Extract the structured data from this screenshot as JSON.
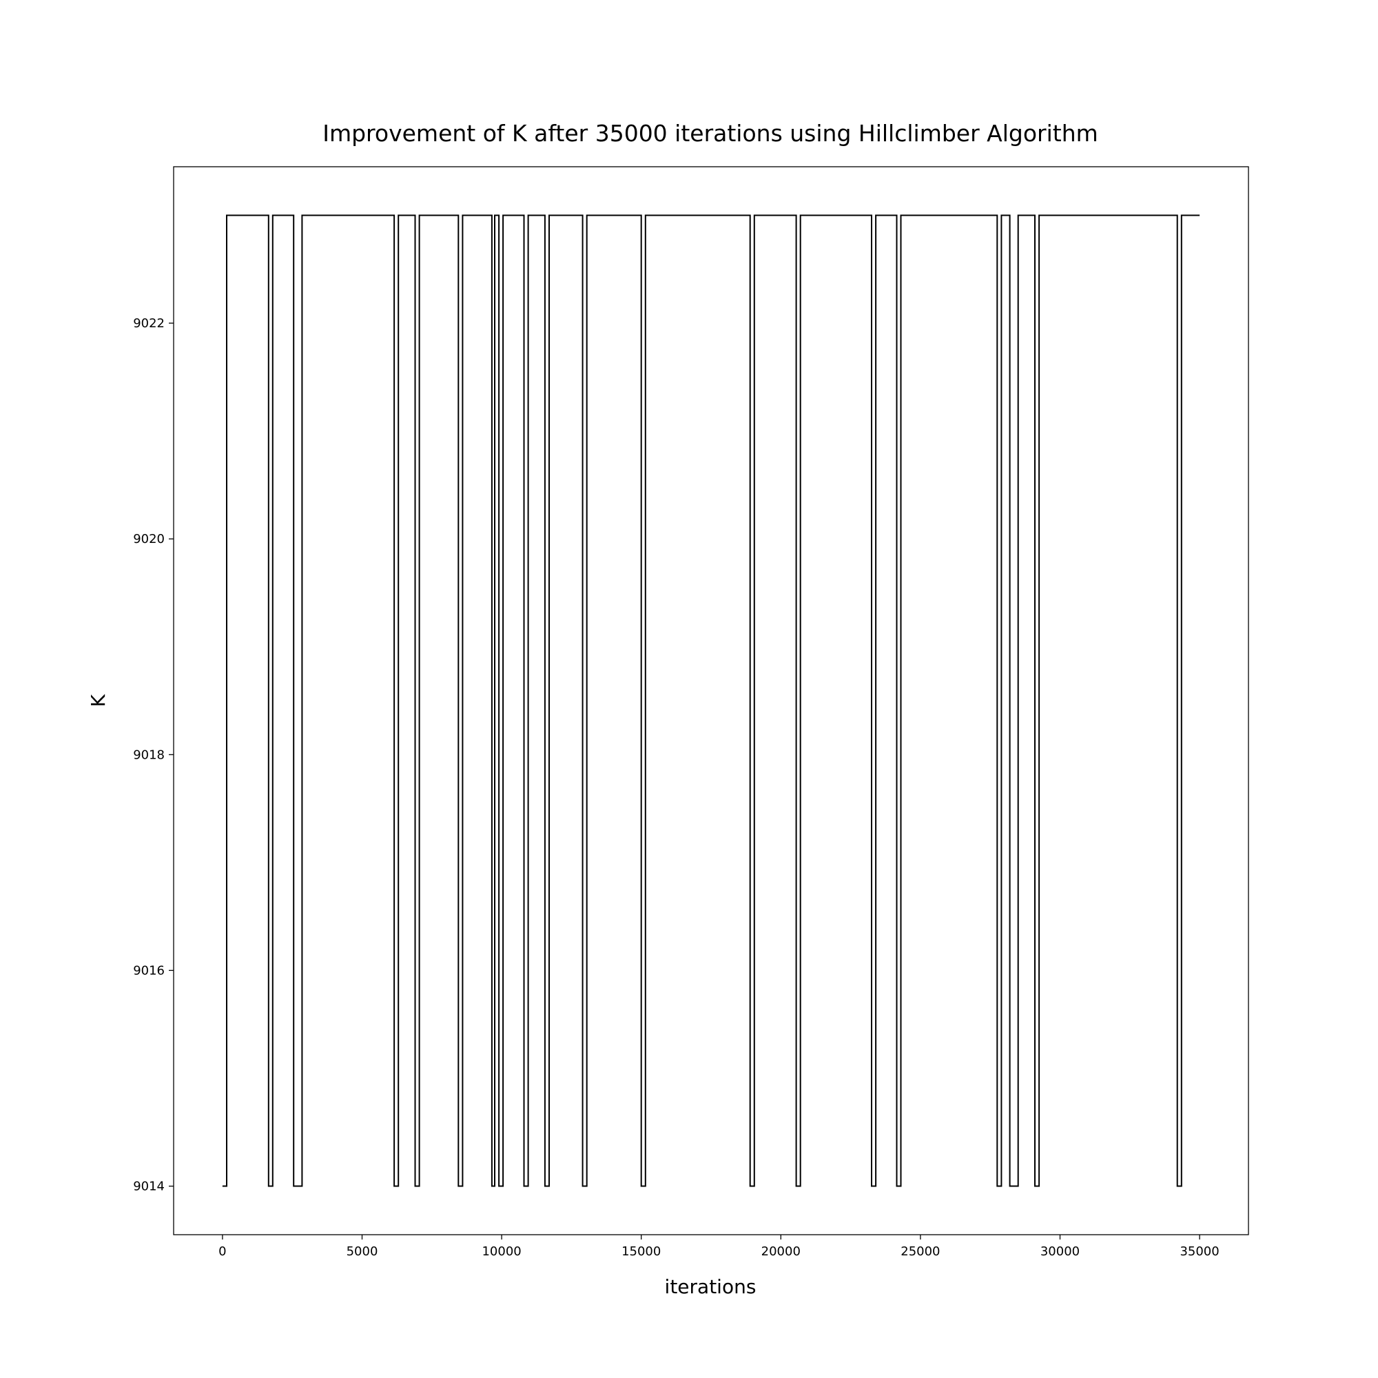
{
  "chart_data": {
    "type": "line",
    "title": "Improvement of K after 35000 iterations using Hillclimber Algorithm",
    "xlabel": "iterations",
    "ylabel": "K",
    "xlim": [
      -1750,
      36750
    ],
    "ylim": [
      9013.55,
      9023.45
    ],
    "x_ticks": [
      0,
      5000,
      10000,
      15000,
      20000,
      25000,
      30000,
      35000
    ],
    "y_ticks": [
      9014,
      9016,
      9018,
      9020,
      9022
    ],
    "grid": false,
    "legend": "none",
    "line_color": "#000000",
    "step_style": "pre",
    "series": [
      {
        "low_value": 9014,
        "high_value": 9023,
        "high_segments": [
          [
            150,
            1650
          ],
          [
            1800,
            2550
          ],
          [
            2850,
            6150
          ],
          [
            6300,
            6900
          ],
          [
            7050,
            8450
          ],
          [
            8600,
            9650
          ],
          [
            9750,
            9900
          ],
          [
            10050,
            10800
          ],
          [
            10950,
            11550
          ],
          [
            11700,
            12900
          ],
          [
            13050,
            15000
          ],
          [
            15150,
            18900
          ],
          [
            19050,
            20550
          ],
          [
            20700,
            23250
          ],
          [
            23400,
            24150
          ],
          [
            24300,
            27750
          ],
          [
            27900,
            28200
          ],
          [
            28500,
            29100
          ],
          [
            29250,
            34200
          ],
          [
            34350,
            35000
          ]
        ]
      }
    ]
  }
}
